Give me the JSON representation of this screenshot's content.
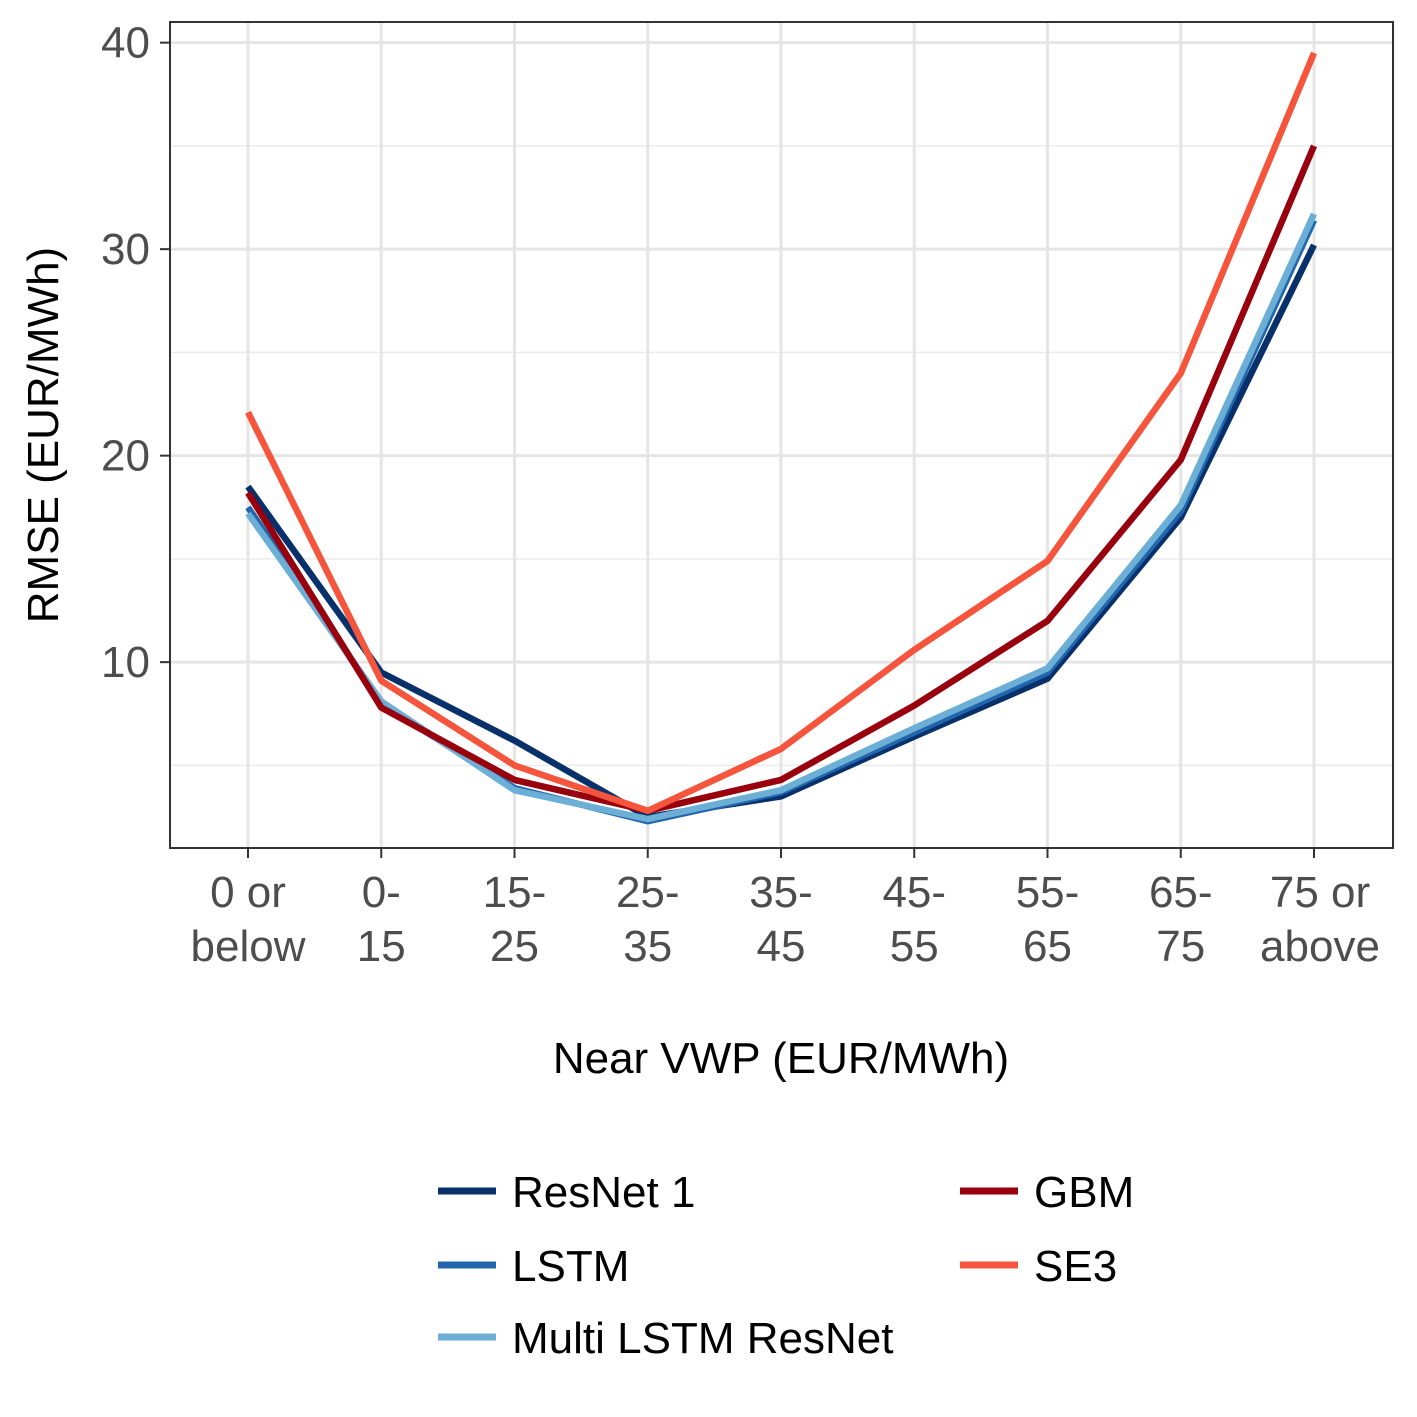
{
  "chart_data": {
    "type": "line",
    "xlabel": "Near VWP (EUR/MWh)",
    "ylabel": "RMSE (EUR/MWh)",
    "categories": [
      [
        "0 or",
        "below"
      ],
      [
        "0-",
        "15"
      ],
      [
        "15-",
        "25"
      ],
      [
        "25-",
        "35"
      ],
      [
        "35-",
        "45"
      ],
      [
        "45-",
        "55"
      ],
      [
        "55-",
        "65"
      ],
      [
        "65-",
        "75"
      ],
      [
        "75 or",
        "above"
      ]
    ],
    "ylim": [
      1,
      41
    ],
    "yticks": [
      10,
      20,
      30,
      40
    ],
    "grid": true,
    "legend_position": "bottom",
    "series": [
      {
        "name": "ResNet 1",
        "color": "#08306b",
        "values": [
          18.5,
          9.5,
          6.2,
          2.5,
          3.5,
          6.4,
          9.2,
          17.0,
          30.2
        ]
      },
      {
        "name": "LSTM",
        "color": "#2166ac",
        "values": [
          17.5,
          8.0,
          3.9,
          2.3,
          3.7,
          6.6,
          9.5,
          17.3,
          31.4
        ]
      },
      {
        "name": "Multi LSTM ResNet",
        "color": "#6baed6",
        "values": [
          17.2,
          8.1,
          3.8,
          2.4,
          3.8,
          6.8,
          9.7,
          17.6,
          31.7
        ]
      },
      {
        "name": "GBM",
        "color": "#99000d",
        "values": [
          18.2,
          7.8,
          4.3,
          2.8,
          4.3,
          7.9,
          12.0,
          19.8,
          35.0
        ]
      },
      {
        "name": "SE3",
        "color": "#f4553c",
        "values": [
          22.1,
          9.1,
          5.0,
          2.8,
          5.8,
          10.6,
          14.9,
          24.0,
          39.5
        ]
      }
    ]
  }
}
